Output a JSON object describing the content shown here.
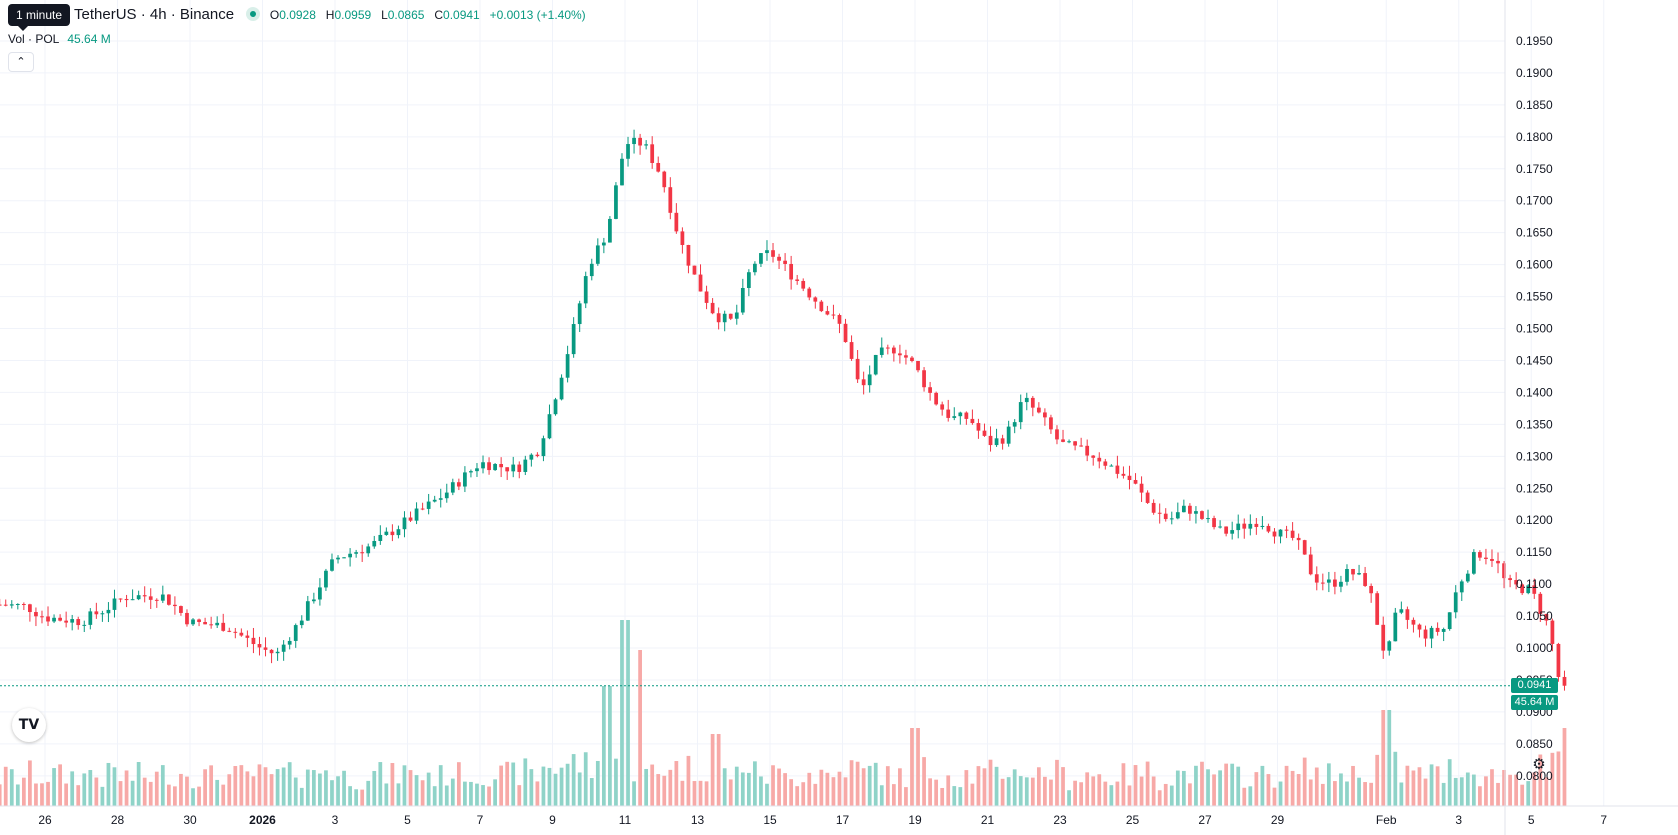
{
  "header": {
    "tooltip": "1 minute",
    "symbol": "TetherUS · 4h · Binance",
    "ohlc": [
      {
        "key": "O",
        "value": "0.0928"
      },
      {
        "key": "H",
        "value": "0.0959"
      },
      {
        "key": "L",
        "value": "0.0865"
      },
      {
        "key": "C",
        "value": "0.0941"
      }
    ],
    "change": "+0.0013 (+1.40%)"
  },
  "volume_legend": {
    "label": "Vol · POL",
    "value": "45.64 M"
  },
  "price_tag": "0.0941",
  "volume_tag": "45.64 M",
  "colors": {
    "up": "#089981",
    "down": "#f23645",
    "up_vol": "#8fd3c8",
    "down_vol": "#f7a9a7",
    "grid": "#f0f3fa",
    "text": "#131722"
  },
  "icons": [
    "tradingview-logo-icon",
    "settings-icon",
    "chevron-up-icon"
  ],
  "chart_data": {
    "type": "candlestick",
    "y_axis": {
      "side": "right",
      "ticks": [
        "0.1950",
        "0.1900",
        "0.1850",
        "0.1800",
        "0.1750",
        "0.1700",
        "0.1650",
        "0.1600",
        "0.1550",
        "0.1500",
        "0.1450",
        "0.1400",
        "0.1350",
        "0.1300",
        "0.1250",
        "0.1200",
        "0.1150",
        "0.1100",
        "0.1050",
        "0.1000",
        "0.0950",
        "0.0900",
        "0.0850",
        "0.0800"
      ],
      "range": [
        0.077,
        0.1975
      ]
    },
    "x_axis": {
      "ticks": [
        {
          "label": "26",
          "day": -6
        },
        {
          "label": "28",
          "day": -4
        },
        {
          "label": "30",
          "day": -2
        },
        {
          "label": "2026",
          "day": 0
        },
        {
          "label": "3",
          "day": 2
        },
        {
          "label": "5",
          "day": 4
        },
        {
          "label": "7",
          "day": 6
        },
        {
          "label": "9",
          "day": 8
        },
        {
          "label": "11",
          "day": 10
        },
        {
          "label": "13",
          "day": 12
        },
        {
          "label": "15",
          "day": 14
        },
        {
          "label": "17",
          "day": 16
        },
        {
          "label": "19",
          "day": 18
        },
        {
          "label": "21",
          "day": 20
        },
        {
          "label": "23",
          "day": 22
        },
        {
          "label": "25",
          "day": 24
        },
        {
          "label": "27",
          "day": 26
        },
        {
          "label": "29",
          "day": 28
        },
        {
          "label": "Feb",
          "day": 31
        },
        {
          "label": "3",
          "day": 33
        },
        {
          "label": "5",
          "day": 35
        },
        {
          "label": "7",
          "day": 37
        }
      ],
      "start_day": -7.25,
      "bars_per_day": 6
    },
    "close_path": [
      {
        "day": -7.2,
        "close": 0.1068
      },
      {
        "day": -6.5,
        "close": 0.1065
      },
      {
        "day": -6.0,
        "close": 0.1048
      },
      {
        "day": -5.0,
        "close": 0.1042
      },
      {
        "day": -4.3,
        "close": 0.1062
      },
      {
        "day": -3.8,
        "close": 0.108
      },
      {
        "day": -2.8,
        "close": 0.1083
      },
      {
        "day": -2.5,
        "close": 0.107
      },
      {
        "day": -2.0,
        "close": 0.104
      },
      {
        "day": -1.0,
        "close": 0.1034
      },
      {
        "day": 0.0,
        "close": 0.0998
      },
      {
        "day": 0.4,
        "close": 0.099
      },
      {
        "day": 1.0,
        "close": 0.104
      },
      {
        "day": 2.0,
        "close": 0.114
      },
      {
        "day": 3.0,
        "close": 0.116
      },
      {
        "day": 4.0,
        "close": 0.12
      },
      {
        "day": 5.0,
        "close": 0.124
      },
      {
        "day": 6.0,
        "close": 0.129
      },
      {
        "day": 7.0,
        "close": 0.128
      },
      {
        "day": 7.6,
        "close": 0.131
      },
      {
        "day": 8.0,
        "close": 0.138
      },
      {
        "day": 8.5,
        "close": 0.148
      },
      {
        "day": 9.0,
        "close": 0.16
      },
      {
        "day": 9.5,
        "close": 0.165
      },
      {
        "day": 10.0,
        "close": 0.179
      },
      {
        "day": 10.5,
        "close": 0.179
      },
      {
        "day": 11.0,
        "close": 0.174
      },
      {
        "day": 11.5,
        "close": 0.164
      },
      {
        "day": 12.0,
        "close": 0.157
      },
      {
        "day": 12.5,
        "close": 0.152
      },
      {
        "day": 13.0,
        "close": 0.151
      },
      {
        "day": 13.5,
        "close": 0.16
      },
      {
        "day": 14.0,
        "close": 0.162
      },
      {
        "day": 15.0,
        "close": 0.156
      },
      {
        "day": 16.0,
        "close": 0.15
      },
      {
        "day": 16.5,
        "close": 0.14
      },
      {
        "day": 17.0,
        "close": 0.146
      },
      {
        "day": 17.5,
        "close": 0.147
      },
      {
        "day": 18.0,
        "close": 0.144
      },
      {
        "day": 18.5,
        "close": 0.139
      },
      {
        "day": 19.0,
        "close": 0.136
      },
      {
        "day": 19.5,
        "close": 0.136
      },
      {
        "day": 20.0,
        "close": 0.132
      },
      {
        "day": 20.5,
        "close": 0.133
      },
      {
        "day": 21.0,
        "close": 0.139
      },
      {
        "day": 21.5,
        "close": 0.136
      },
      {
        "day": 22.0,
        "close": 0.132
      },
      {
        "day": 23.0,
        "close": 0.13
      },
      {
        "day": 24.0,
        "close": 0.126
      },
      {
        "day": 24.5,
        "close": 0.122
      },
      {
        "day": 25.0,
        "close": 0.12
      },
      {
        "day": 25.5,
        "close": 0.122
      },
      {
        "day": 26.0,
        "close": 0.12
      },
      {
        "day": 26.5,
        "close": 0.118
      },
      {
        "day": 27.0,
        "close": 0.119
      },
      {
        "day": 27.5,
        "close": 0.12
      },
      {
        "day": 28.0,
        "close": 0.118
      },
      {
        "day": 28.5,
        "close": 0.117
      },
      {
        "day": 29.0,
        "close": 0.111
      },
      {
        "day": 29.5,
        "close": 0.11
      },
      {
        "day": 30.0,
        "close": 0.112
      },
      {
        "day": 30.5,
        "close": 0.11
      },
      {
        "day": 31.0,
        "close": 0.098
      },
      {
        "day": 31.3,
        "close": 0.106
      },
      {
        "day": 32.0,
        "close": 0.102
      },
      {
        "day": 32.6,
        "close": 0.103
      },
      {
        "day": 33.0,
        "close": 0.11
      },
      {
        "day": 33.5,
        "close": 0.115
      },
      {
        "day": 34.0,
        "close": 0.114
      },
      {
        "day": 34.3,
        "close": 0.11
      },
      {
        "day": 35.0,
        "close": 0.109
      },
      {
        "day": 35.5,
        "close": 0.103
      },
      {
        "day": 35.8,
        "close": 0.094
      },
      {
        "day": 36.0,
        "close": 0.0941
      }
    ],
    "volume_spikes": [
      {
        "day": 10.0,
        "volume": 3.1
      },
      {
        "day": 10.4,
        "volume": 2.6
      },
      {
        "day": 9.5,
        "volume": 2.0
      },
      {
        "day": 31.0,
        "volume": 1.6
      },
      {
        "day": 18.0,
        "volume": 1.3
      },
      {
        "day": 12.5,
        "volume": 1.2
      },
      {
        "day": 36.0,
        "volume": 1.3
      }
    ],
    "last_close": 0.0941,
    "last_volume_label": "45.64 M"
  }
}
